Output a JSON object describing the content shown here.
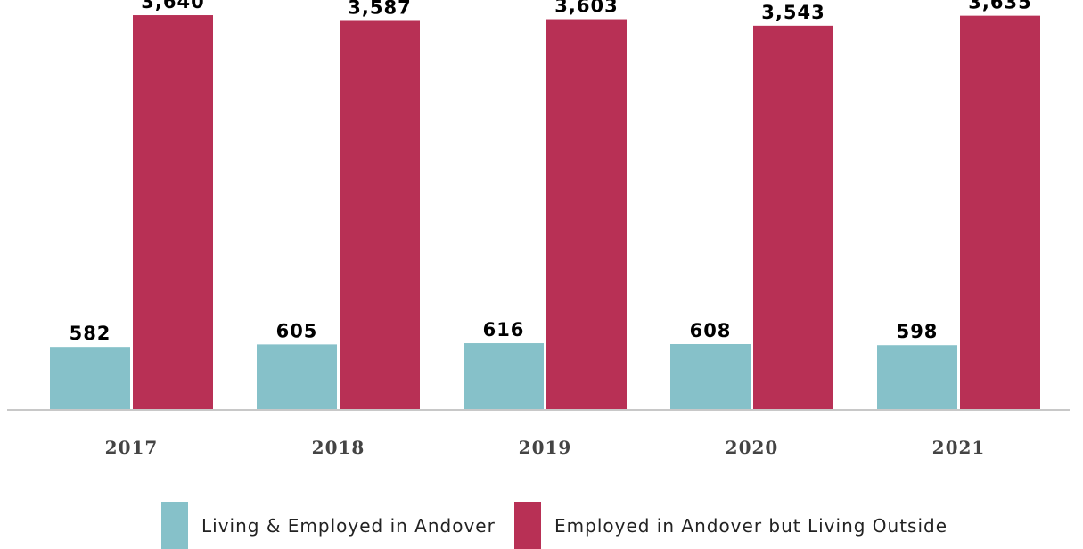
{
  "chart_data": {
    "type": "bar",
    "categories": [
      "2017",
      "2018",
      "2019",
      "2020",
      "2021"
    ],
    "series": [
      {
        "name": "Living & Employed in Andover",
        "values": [
          582,
          605,
          616,
          608,
          598
        ],
        "labels": [
          "582",
          "605",
          "616",
          "608",
          "598"
        ],
        "color": "#86c1c9"
      },
      {
        "name": "Employed in Andover but Living Outside",
        "values": [
          3640,
          3587,
          3603,
          3543,
          3635
        ],
        "labels": [
          "3,640",
          "3,587",
          "3,603",
          "3,543",
          "3,635"
        ],
        "color": "#b83055"
      }
    ],
    "ylim": [
      0,
      3780
    ],
    "grid": false,
    "legend_position": "bottom-center",
    "axis_color": "#c8c8c8"
  }
}
